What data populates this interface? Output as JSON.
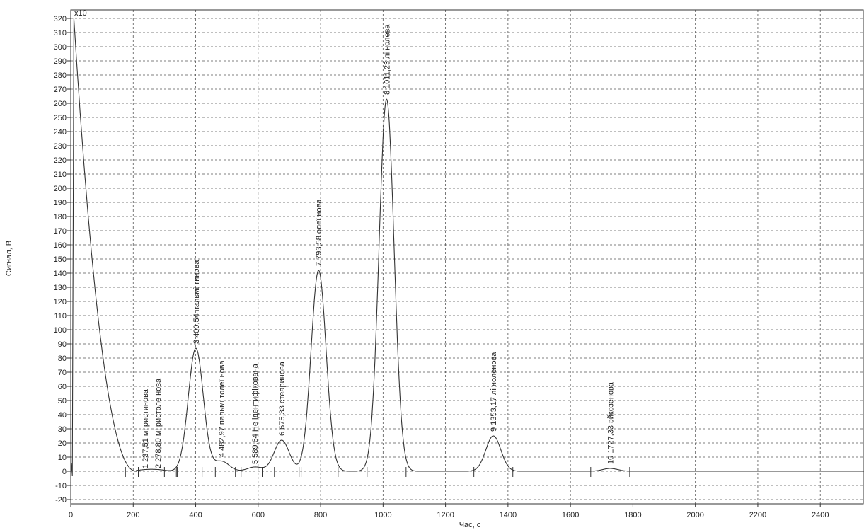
{
  "chart_data": {
    "type": "line",
    "multiplier_label": "x10",
    "xlabel": "Час, с",
    "ylabel": "Сигнал, В",
    "xlim": [
      0,
      2540
    ],
    "ylim": [
      -23,
      326
    ],
    "x_ticks": [
      0,
      200,
      400,
      600,
      800,
      1000,
      1200,
      1400,
      1600,
      1800,
      2000,
      2200,
      2400
    ],
    "y_ticks": [
      -20,
      -10,
      0,
      10,
      20,
      30,
      40,
      50,
      60,
      70,
      80,
      90,
      100,
      110,
      120,
      130,
      140,
      150,
      160,
      170,
      180,
      190,
      200,
      210,
      220,
      230,
      240,
      250,
      260,
      270,
      280,
      290,
      300,
      310,
      320
    ],
    "grid": true,
    "series": [
      {
        "baseline": 0,
        "solvent_peak": {
          "start_x": 10,
          "start_y": 320,
          "end_x": 210,
          "end_y": 0
        },
        "peaks": [
          {
            "x": 237.51,
            "height": 1
          },
          {
            "x": 278.8,
            "height": 1
          },
          {
            "x": 400.54,
            "height": 87
          },
          {
            "x": 482.97,
            "height": 7
          },
          {
            "x": 589.64,
            "height": 3
          },
          {
            "x": 675.33,
            "height": 22
          },
          {
            "x": 793.58,
            "height": 142
          },
          {
            "x": 1011.23,
            "height": 263
          },
          {
            "x": 1353.17,
            "height": 25
          },
          {
            "x": 1727.33,
            "height": 2
          }
        ]
      }
    ],
    "peak_labels": [
      {
        "x": 237.51,
        "y": 2,
        "text": "1  237,51  мі ристинова"
      },
      {
        "x": 278.8,
        "y": 2,
        "text": "2  278,80  мі ристоле нова"
      },
      {
        "x": 400.54,
        "y": 90,
        "text": "3  400,54  пальмі тинова"
      },
      {
        "x": 482.97,
        "y": 10,
        "text": "4  482,97  пальмі толеї нова"
      },
      {
        "x": 589.64,
        "y": 5,
        "text": "5  589,64   Не ідентифікована"
      },
      {
        "x": 675.33,
        "y": 25,
        "text": "6  675,33  стеаринова"
      },
      {
        "x": 793.58,
        "y": 145,
        "text": "7  793,58  олеї нова"
      },
      {
        "x": 1011.23,
        "y": 266,
        "text": "8  1011,23  лі нолева"
      },
      {
        "x": 1353.17,
        "y": 28,
        "text": "9  1353,17  лі ноленова"
      },
      {
        "x": 1727.33,
        "y": 5,
        "text": "10  1727,33  эйкозенова"
      }
    ]
  }
}
